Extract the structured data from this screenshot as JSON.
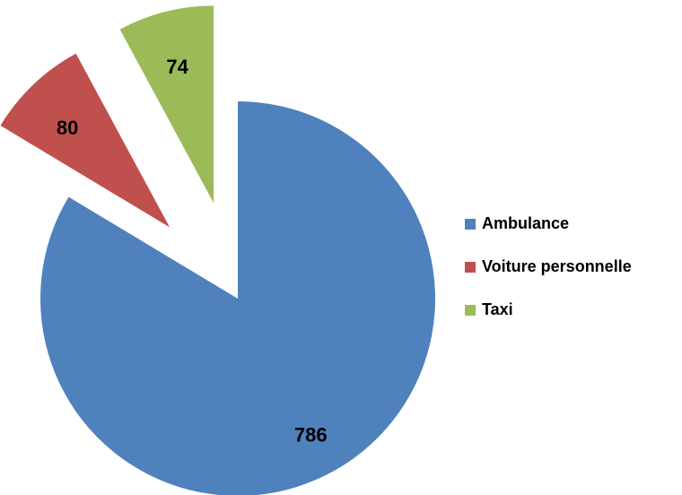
{
  "chart_data": {
    "type": "pie",
    "categories": [
      "Ambulance",
      "Voiture personnelle",
      "Taxi"
    ],
    "values": [
      786,
      80,
      74
    ],
    "colors": [
      "#4f81bd",
      "#c0504d",
      "#9bbb59"
    ],
    "legend": "right"
  }
}
